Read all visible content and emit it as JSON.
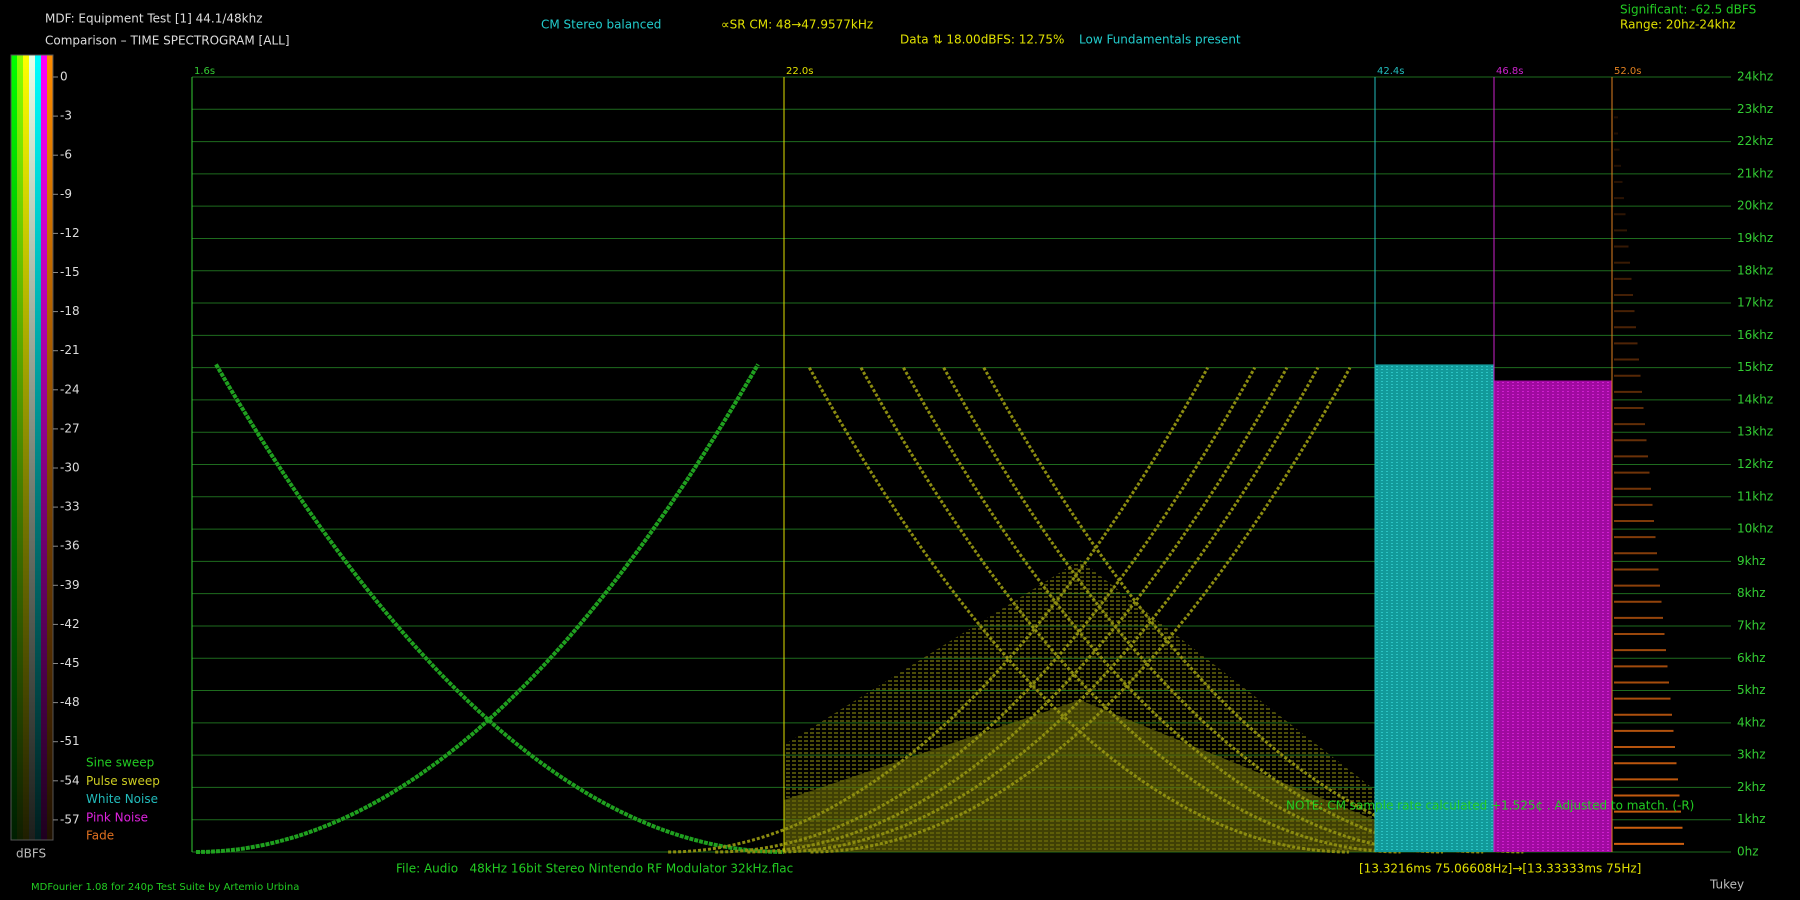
{
  "header": {
    "title": "MDF: Equipment Test [1] 44.1/48khz",
    "subtitle": "Comparison – TIME SPECTROGRAM [ALL]",
    "stereo": "CM Stereo balanced",
    "sample_rate": "∝SR CM: 48→47.9577kHz",
    "data_note": "Data ⇅ 18.00dBFS: 12.75%",
    "fundamentals": "Low Fundamentals present",
    "significant": "Significant: -62.5 dBFS",
    "range": "Range: 20hz-24khz"
  },
  "scale": {
    "labels": [
      0,
      -3,
      -6,
      -9,
      -12,
      -15,
      -18,
      -21,
      -24,
      -27,
      -30,
      -33,
      -36,
      -39,
      -42,
      -45,
      -48,
      -51,
      -54,
      -57
    ],
    "unit": "dBFS",
    "colors": [
      "#00ff00",
      "#88ff00",
      "#ffff00",
      "#e8ffe8",
      "#00ffff",
      "#ff00ff",
      "#ff8c00"
    ]
  },
  "legend": [
    {
      "name": "Sine sweep",
      "color": "#22cc22"
    },
    {
      "name": "Pulse sweep",
      "color": "#cccc22"
    },
    {
      "name": "White Noise",
      "color": "#22bbbb"
    },
    {
      "name": "Pink Noise",
      "color": "#dd22dd"
    },
    {
      "name": "Fade",
      "color": "#e07020"
    }
  ],
  "time_markers": [
    {
      "label": "1.6s",
      "color": "#33cc33"
    },
    {
      "label": "22.0s",
      "color": "#e0e000"
    },
    {
      "label": "42.4s",
      "color": "#22bbbb"
    },
    {
      "label": "46.8s",
      "color": "#cc22cc"
    },
    {
      "label": "52.0s",
      "color": "#e08020"
    }
  ],
  "frequency_labels": [
    "24khz",
    "23khz",
    "22khz",
    "21khz",
    "20khz",
    "19khz",
    "18khz",
    "17khz",
    "16khz",
    "15khz",
    "14khz",
    "13khz",
    "12khz",
    "11khz",
    "10khz",
    "9khz",
    "8khz",
    "7khz",
    "6khz",
    "5khz",
    "4khz",
    "3khz",
    "2khz",
    "1khz",
    "0hz"
  ],
  "note": "NOTE: CM sample rate calculated +1.525¢ . Adjusted to match. (-R)",
  "footer": {
    "file": "File: Audio   48kHz 16bit Stereo Nintendo RF Modulator 32kHz.flac",
    "timing": "[13.3216ms 75.06608Hz]→[13.33333ms 75Hz]",
    "credit": "MDFourier 1.08 for 240p Test Suite by Artemio Urbina",
    "window": "Tukey"
  }
}
